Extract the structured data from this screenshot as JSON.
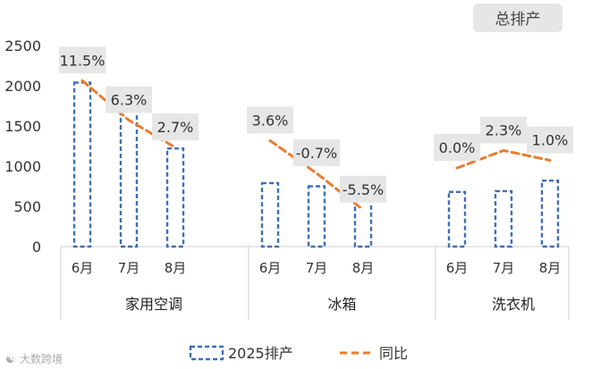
{
  "badge": "总排产",
  "watermark": "大数跨境",
  "chart_data": {
    "type": "bar",
    "groups": [
      "家用空调",
      "冰箱",
      "洗衣机"
    ],
    "months": [
      "6月",
      "7月",
      "8月"
    ],
    "y_ticks": [
      "0",
      "500",
      "1000",
      "1500",
      "2000",
      "2500"
    ],
    "ylim": [
      0,
      2500
    ],
    "series": [
      {
        "name": "2025排产",
        "type": "bar",
        "values": [
          2040,
          1700,
          1220,
          790,
          750,
          580,
          680,
          690,
          820
        ]
      },
      {
        "name": "同比",
        "type": "line",
        "values": [
          11.5,
          6.3,
          2.7,
          3.6,
          -0.7,
          -5.5,
          0.0,
          2.3,
          1.0
        ],
        "labels": [
          "11.5%",
          "6.3%",
          "2.7%",
          "3.6%",
          "-0.7%",
          "-5.5%",
          "0.0%",
          "2.3%",
          "1.0%"
        ]
      }
    ],
    "legend_position": "bottom",
    "colors": {
      "bar": "#3d6fb6",
      "line": "#e87d2f",
      "label_bg": "#e6e6e6",
      "badge_bg": "#e6e6e6"
    }
  }
}
